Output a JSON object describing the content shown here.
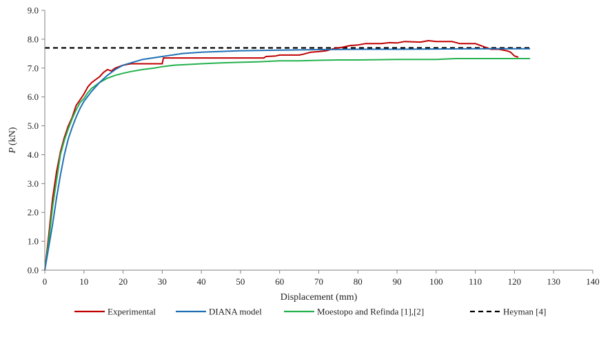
{
  "chart_data": {
    "type": "line",
    "xlabel": "Displacement (mm)",
    "ylabel": "(kN)",
    "ylabel_italic": "P",
    "xlim": [
      0,
      140
    ],
    "ylim": [
      0,
      9
    ],
    "x_ticks": [
      0,
      10,
      20,
      30,
      40,
      50,
      60,
      70,
      80,
      90,
      100,
      110,
      120,
      130,
      140
    ],
    "y_ticks": [
      "0.0",
      "1.0",
      "2.0",
      "3.0",
      "4.0",
      "5.0",
      "6.0",
      "7.0",
      "8.0",
      "9.0"
    ],
    "grid": false,
    "legend_position": "bottom",
    "series": [
      {
        "name": "Experimental",
        "color": "#c00000",
        "dash": "solid",
        "points": [
          [
            0,
            0
          ],
          [
            1,
            1.2
          ],
          [
            2,
            2.5
          ],
          [
            3,
            3.4
          ],
          [
            4,
            4.1
          ],
          [
            5,
            4.6
          ],
          [
            6,
            5.0
          ],
          [
            7,
            5.3
          ],
          [
            8,
            5.7
          ],
          [
            9,
            5.9
          ],
          [
            10,
            6.1
          ],
          [
            11,
            6.35
          ],
          [
            12,
            6.5
          ],
          [
            13,
            6.6
          ],
          [
            14,
            6.7
          ],
          [
            15,
            6.85
          ],
          [
            16,
            6.95
          ],
          [
            17,
            6.9
          ],
          [
            18,
            7.0
          ],
          [
            19,
            7.05
          ],
          [
            20,
            7.1
          ],
          [
            22,
            7.15
          ],
          [
            25,
            7.15
          ],
          [
            28,
            7.15
          ],
          [
            30,
            7.15
          ],
          [
            30.3,
            7.35
          ],
          [
            35,
            7.35
          ],
          [
            40,
            7.35
          ],
          [
            45,
            7.35
          ],
          [
            50,
            7.35
          ],
          [
            55,
            7.35
          ],
          [
            56,
            7.35
          ],
          [
            56.5,
            7.4
          ],
          [
            59,
            7.42
          ],
          [
            60,
            7.45
          ],
          [
            65,
            7.45
          ],
          [
            66,
            7.48
          ],
          [
            68,
            7.55
          ],
          [
            70,
            7.57
          ],
          [
            72,
            7.6
          ],
          [
            74,
            7.68
          ],
          [
            76,
            7.72
          ],
          [
            78,
            7.78
          ],
          [
            80,
            7.8
          ],
          [
            82,
            7.85
          ],
          [
            86,
            7.85
          ],
          [
            88,
            7.88
          ],
          [
            90,
            7.87
          ],
          [
            92,
            7.92
          ],
          [
            96,
            7.9
          ],
          [
            98,
            7.95
          ],
          [
            100,
            7.92
          ],
          [
            104,
            7.92
          ],
          [
            106,
            7.85
          ],
          [
            110,
            7.85
          ],
          [
            112,
            7.75
          ],
          [
            114,
            7.65
          ],
          [
            116,
            7.65
          ],
          [
            118,
            7.6
          ],
          [
            119,
            7.55
          ],
          [
            120,
            7.42
          ],
          [
            121,
            7.38
          ]
        ]
      },
      {
        "name": "DIANA model",
        "color": "#1f6fb4",
        "dash": "solid",
        "points": [
          [
            0,
            0
          ],
          [
            1,
            0.8
          ],
          [
            2,
            1.6
          ],
          [
            3,
            2.5
          ],
          [
            4,
            3.3
          ],
          [
            5,
            4.0
          ],
          [
            6,
            4.55
          ],
          [
            7,
            4.95
          ],
          [
            8,
            5.3
          ],
          [
            9,
            5.6
          ],
          [
            10,
            5.85
          ],
          [
            12,
            6.2
          ],
          [
            14,
            6.5
          ],
          [
            16,
            6.75
          ],
          [
            18,
            6.95
          ],
          [
            20,
            7.1
          ],
          [
            25,
            7.3
          ],
          [
            30,
            7.4
          ],
          [
            35,
            7.5
          ],
          [
            40,
            7.55
          ],
          [
            50,
            7.6
          ],
          [
            60,
            7.62
          ],
          [
            70,
            7.64
          ],
          [
            80,
            7.65
          ],
          [
            90,
            7.65
          ],
          [
            100,
            7.66
          ],
          [
            110,
            7.67
          ],
          [
            120,
            7.67
          ],
          [
            124,
            7.67
          ]
        ]
      },
      {
        "name": "Moestopo and Refinda [1],[2]",
        "color": "#22b14c",
        "dash": "solid",
        "points": [
          [
            0,
            0
          ],
          [
            1,
            1.0
          ],
          [
            2,
            2.2
          ],
          [
            3,
            3.1
          ],
          [
            4,
            4.0
          ],
          [
            5,
            4.5
          ],
          [
            6,
            4.9
          ],
          [
            7,
            5.25
          ],
          [
            8,
            5.55
          ],
          [
            9,
            5.8
          ],
          [
            10,
            5.95
          ],
          [
            11,
            6.15
          ],
          [
            12,
            6.3
          ],
          [
            14,
            6.5
          ],
          [
            16,
            6.65
          ],
          [
            18,
            6.75
          ],
          [
            20,
            6.82
          ],
          [
            22,
            6.88
          ],
          [
            25,
            6.95
          ],
          [
            28,
            7.0
          ],
          [
            30,
            7.05
          ],
          [
            33,
            7.1
          ],
          [
            36,
            7.12
          ],
          [
            40,
            7.15
          ],
          [
            45,
            7.18
          ],
          [
            50,
            7.2
          ],
          [
            55,
            7.22
          ],
          [
            60,
            7.25
          ],
          [
            65,
            7.25
          ],
          [
            70,
            7.27
          ],
          [
            75,
            7.28
          ],
          [
            80,
            7.28
          ],
          [
            90,
            7.3
          ],
          [
            100,
            7.3
          ],
          [
            105,
            7.33
          ],
          [
            110,
            7.33
          ],
          [
            115,
            7.33
          ],
          [
            120,
            7.33
          ],
          [
            124,
            7.33
          ]
        ]
      },
      {
        "name": "Heyman [4]",
        "color": "#000000",
        "dash": "dashed",
        "points": [
          [
            0,
            7.7
          ],
          [
            124,
            7.7
          ]
        ]
      }
    ]
  }
}
